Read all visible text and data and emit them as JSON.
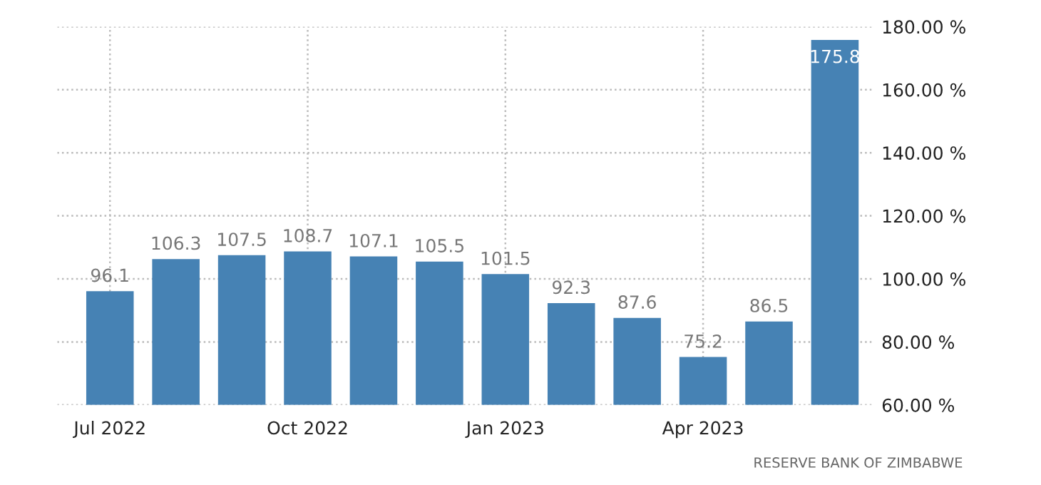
{
  "chart_data": {
    "type": "bar",
    "categories": [
      "Jul 2022",
      null,
      null,
      "Oct 2022",
      null,
      null,
      "Jan 2023",
      null,
      null,
      "Apr 2023",
      null,
      null
    ],
    "values": [
      96.1,
      106.3,
      107.5,
      108.7,
      107.1,
      105.5,
      101.5,
      92.3,
      87.6,
      75.2,
      86.5,
      175.8
    ],
    "color": "#4682b4",
    "ylim": [
      60,
      180
    ],
    "yticks": [
      {
        "value": 60,
        "label": "60.00 %"
      },
      {
        "value": 80,
        "label": "80.00 %"
      },
      {
        "value": 100,
        "label": "100.00 %"
      },
      {
        "value": 120,
        "label": "120.00 %"
      },
      {
        "value": 140,
        "label": "140.00 %"
      },
      {
        "value": 160,
        "label": "160.00 %"
      },
      {
        "value": 180,
        "label": "180.00 %"
      }
    ],
    "data_labels": true,
    "grid": true,
    "annotations": [
      "RESERVE BANK OF ZIMBABWE"
    ]
  }
}
